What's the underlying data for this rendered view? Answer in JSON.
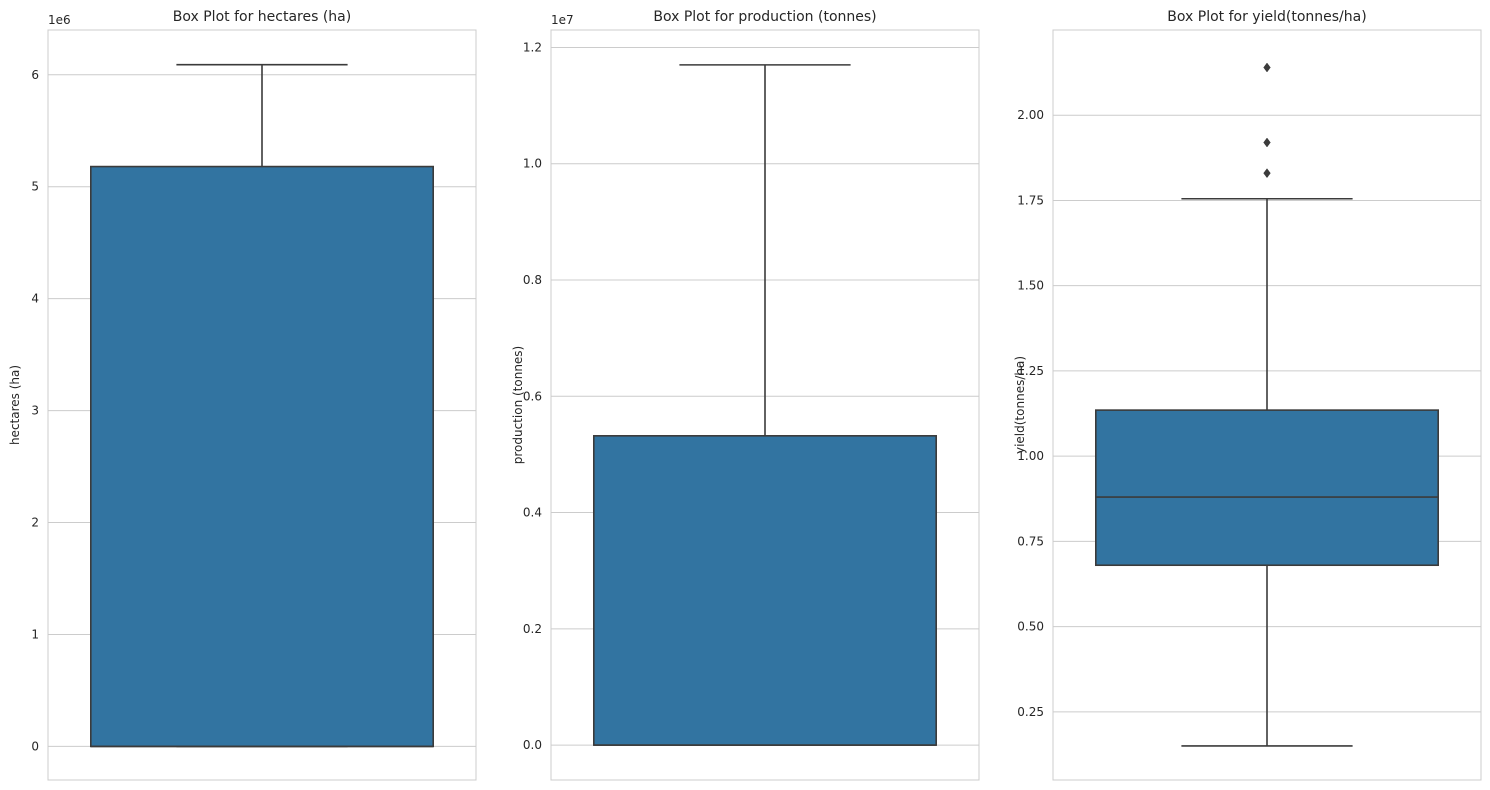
{
  "chart_data": [
    {
      "type": "box",
      "title": "Box Plot for hectares (ha)",
      "ylabel": "hectares (ha)",
      "offset_label": "1e6",
      "ylim": [
        -300000,
        6400000
      ],
      "yticks": [
        0,
        1000000,
        2000000,
        3000000,
        4000000,
        5000000,
        6000000
      ],
      "ytick_labels": [
        "0",
        "1",
        "2",
        "3",
        "4",
        "5",
        "6"
      ],
      "box": {
        "whisker_low": 0,
        "q1": 0,
        "median": 0,
        "q3": 5180000,
        "whisker_high": 6090000,
        "outliers": []
      },
      "grid": true,
      "box_color": "#3274a1"
    },
    {
      "type": "box",
      "title": "Box Plot for production (tonnes)",
      "ylabel": "production (tonnes)",
      "offset_label": "1e7",
      "ylim": [
        -600000,
        12300000
      ],
      "yticks": [
        0,
        2000000,
        4000000,
        6000000,
        8000000,
        10000000,
        12000000
      ],
      "ytick_labels": [
        "0.0",
        "0.2",
        "0.4",
        "0.6",
        "0.8",
        "1.0",
        "1.2"
      ],
      "box": {
        "whisker_low": 0,
        "q1": 0,
        "median": 0,
        "q3": 5320000,
        "whisker_high": 11700000,
        "outliers": []
      },
      "grid": true,
      "box_color": "#3274a1"
    },
    {
      "type": "box",
      "title": "Box Plot for yield(tonnes/ha)",
      "ylabel": "yield(tonnes/ha)",
      "offset_label": "",
      "ylim": [
        0.05,
        2.25
      ],
      "yticks": [
        0.25,
        0.5,
        0.75,
        1.0,
        1.25,
        1.5,
        1.75,
        2.0
      ],
      "ytick_labels": [
        "0.25",
        "0.50",
        "0.75",
        "1.00",
        "1.25",
        "1.50",
        "1.75",
        "2.00"
      ],
      "box": {
        "whisker_low": 0.15,
        "q1": 0.68,
        "median": 0.88,
        "q3": 1.135,
        "whisker_high": 1.755,
        "outliers": [
          1.83,
          1.92,
          2.14
        ]
      },
      "grid": true,
      "box_color": "#3274a1"
    }
  ]
}
